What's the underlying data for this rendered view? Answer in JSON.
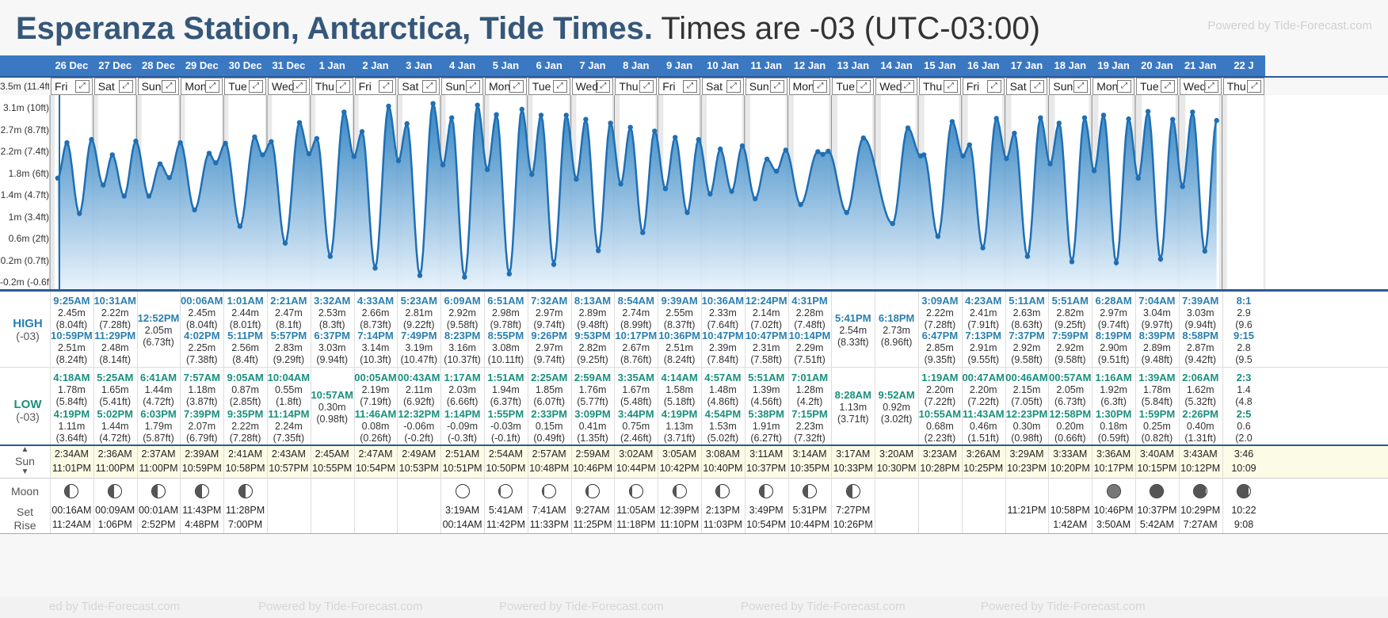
{
  "title": {
    "location": "Esperanza Station, Antarctica, Tide Times.",
    "timezone": "Times are -03 (UTC-03:00)",
    "powered": "Powered by Tide-Forecast.com"
  },
  "labels": {
    "high": "HIGH",
    "high_tz": "(-03)",
    "low": "LOW",
    "low_tz": "(-03)",
    "sun": "Sun",
    "moon": "Moon",
    "set": "Set",
    "rise": "Rise"
  },
  "y_axis": [
    "3.5m (11.4ft)",
    "3.1m (10ft)",
    "2.7m (8.7ft)",
    "2.2m (7.4ft)",
    "1.8m (6ft)",
    "1.4m (4.7ft)",
    "1m (3.4ft)",
    "0.6m (2ft)",
    "0.2m (0.7ft)",
    "-0.2m (-0.6ft)"
  ],
  "footer": [
    "ed by Tide-Forecast.com",
    "Powered by Tide-Forecast.com",
    "Powered by Tide-Forecast.com",
    "Powered by Tide-Forecast.com",
    "Powered by Tide-Forecast.com"
  ],
  "days": [
    {
      "date": "26 Dec",
      "dow": "Fri",
      "high": [
        {
          "t": "9:25AM",
          "m": "2.45m",
          "f": "(8.04ft)"
        },
        {
          "t": "10:59PM",
          "m": "2.51m",
          "f": "(8.24ft)"
        }
      ],
      "low": [
        {
          "t": "4:18AM",
          "m": "1.78m",
          "f": "(5.84ft)"
        },
        {
          "t": "4:19PM",
          "m": "1.11m",
          "f": "(3.64ft)"
        }
      ],
      "sunrise": "2:34AM",
      "sunset": "11:01PM",
      "moon_phase": 0.35,
      "moon_set": "00:16AM",
      "moon_rise": "11:24AM"
    },
    {
      "date": "27 Dec",
      "dow": "Sat",
      "high": [
        {
          "t": "10:31AM",
          "m": "2.22m",
          "f": "(7.28ft)"
        },
        {
          "t": "11:29PM",
          "m": "2.48m",
          "f": "(8.14ft)"
        }
      ],
      "low": [
        {
          "t": "5:25AM",
          "m": "1.65m",
          "f": "(5.41ft)"
        },
        {
          "t": "5:02PM",
          "m": "1.44m",
          "f": "(4.72ft)"
        }
      ],
      "sunrise": "2:36AM",
      "sunset": "11:00PM",
      "moon_phase": 0.4,
      "moon_set": "00:09AM",
      "moon_rise": "1:06PM"
    },
    {
      "date": "28 Dec",
      "dow": "Sun",
      "high": [
        {
          "t": "12:52PM",
          "m": "2.05m",
          "f": "(6.73ft)"
        }
      ],
      "low": [
        {
          "t": "6:41AM",
          "m": "1.44m",
          "f": "(4.72ft)"
        },
        {
          "t": "6:03PM",
          "m": "1.79m",
          "f": "(5.87ft)"
        }
      ],
      "sunrise": "2:37AM",
      "sunset": "11:00PM",
      "moon_phase": 0.45,
      "moon_set": "00:01AM",
      "moon_rise": "2:52PM"
    },
    {
      "date": "29 Dec",
      "dow": "Mon",
      "high": [
        {
          "t": "00:06AM",
          "m": "2.45m",
          "f": "(8.04ft)"
        },
        {
          "t": "4:02PM",
          "m": "2.25m",
          "f": "(7.38ft)"
        }
      ],
      "low": [
        {
          "t": "7:57AM",
          "m": "1.18m",
          "f": "(3.87ft)"
        },
        {
          "t": "7:39PM",
          "m": "2.07m",
          "f": "(6.79ft)"
        }
      ],
      "sunrise": "2:39AM",
      "sunset": "10:59PM",
      "moon_phase": 0.5,
      "moon_set": "11:43PM",
      "moon_rise": "4:48PM"
    },
    {
      "date": "30 Dec",
      "dow": "Tue",
      "high": [
        {
          "t": "1:01AM",
          "m": "2.44m",
          "f": "(8.01ft)"
        },
        {
          "t": "5:11PM",
          "m": "2.56m",
          "f": "(8.4ft)"
        }
      ],
      "low": [
        {
          "t": "9:05AM",
          "m": "0.87m",
          "f": "(2.85ft)"
        },
        {
          "t": "9:35PM",
          "m": "2.22m",
          "f": "(7.28ft)"
        }
      ],
      "sunrise": "2:41AM",
      "sunset": "10:58PM",
      "moon_phase": 0.55,
      "moon_set": "11:28PM",
      "moon_rise": "7:00PM"
    },
    {
      "date": "31 Dec",
      "dow": "Wed",
      "high": [
        {
          "t": "2:21AM",
          "m": "2.47m",
          "f": "(8.1ft)"
        },
        {
          "t": "5:57PM",
          "m": "2.83m",
          "f": "(9.29ft)"
        }
      ],
      "low": [
        {
          "t": "10:04AM",
          "m": "0.55m",
          "f": "(1.8ft)"
        },
        {
          "t": "11:14PM",
          "m": "2.24m",
          "f": "(7.35ft)"
        }
      ],
      "sunrise": "2:43AM",
      "sunset": "10:57PM",
      "moon_phase": -1,
      "moon_set": "",
      "moon_rise": ""
    },
    {
      "date": "1 Jan",
      "dow": "Thu",
      "high": [
        {
          "t": "3:32AM",
          "m": "2.53m",
          "f": "(8.3ft)"
        },
        {
          "t": "6:37PM",
          "m": "3.03m",
          "f": "(9.94ft)"
        }
      ],
      "low": [
        {
          "t": "10:57AM",
          "m": "0.30m",
          "f": "(0.98ft)"
        }
      ],
      "sunrise": "2:45AM",
      "sunset": "10:55PM",
      "moon_phase": -1,
      "moon_set": "",
      "moon_rise": ""
    },
    {
      "date": "2 Jan",
      "dow": "Fri",
      "high": [
        {
          "t": "4:33AM",
          "m": "2.66m",
          "f": "(8.73ft)"
        },
        {
          "t": "7:14PM",
          "m": "3.14m",
          "f": "(10.3ft)"
        }
      ],
      "low": [
        {
          "t": "00:05AM",
          "m": "2.19m",
          "f": "(7.19ft)"
        },
        {
          "t": "11:46AM",
          "m": "0.08m",
          "f": "(0.26ft)"
        }
      ],
      "sunrise": "2:47AM",
      "sunset": "10:54PM",
      "moon_phase": -1,
      "moon_set": "",
      "moon_rise": ""
    },
    {
      "date": "3 Jan",
      "dow": "Sat",
      "high": [
        {
          "t": "5:23AM",
          "m": "2.81m",
          "f": "(9.22ft)"
        },
        {
          "t": "7:49PM",
          "m": "3.19m",
          "f": "(10.47ft)"
        }
      ],
      "low": [
        {
          "t": "00:43AM",
          "m": "2.11m",
          "f": "(6.92ft)"
        },
        {
          "t": "12:32PM",
          "m": "-0.06m",
          "f": "(-0.2ft)"
        }
      ],
      "sunrise": "2:49AM",
      "sunset": "10:53PM",
      "moon_phase": -1,
      "moon_set": "",
      "moon_rise": ""
    },
    {
      "date": "4 Jan",
      "dow": "Sun",
      "high": [
        {
          "t": "6:09AM",
          "m": "2.92m",
          "f": "(9.58ft)"
        },
        {
          "t": "8:23PM",
          "m": "3.16m",
          "f": "(10.37ft)"
        }
      ],
      "low": [
        {
          "t": "1:17AM",
          "m": "2.03m",
          "f": "(6.66ft)"
        },
        {
          "t": "1:14PM",
          "m": "-0.09m",
          "f": "(-0.3ft)"
        }
      ],
      "sunrise": "2:51AM",
      "sunset": "10:51PM",
      "moon_phase": 0.0,
      "moon_set": "3:19AM",
      "moon_rise": "00:14AM"
    },
    {
      "date": "5 Jan",
      "dow": "Mon",
      "high": [
        {
          "t": "6:51AM",
          "m": "2.98m",
          "f": "(9.78ft)"
        },
        {
          "t": "8:55PM",
          "m": "3.08m",
          "f": "(10.11ft)"
        }
      ],
      "low": [
        {
          "t": "1:51AM",
          "m": "1.94m",
          "f": "(6.37ft)"
        },
        {
          "t": "1:55PM",
          "m": "-0.03m",
          "f": "(-0.1ft)"
        }
      ],
      "sunrise": "2:54AM",
      "sunset": "10:50PM",
      "moon_phase": 0.08,
      "moon_set": "5:41AM",
      "moon_rise": "11:42PM"
    },
    {
      "date": "6 Jan",
      "dow": "Tue",
      "high": [
        {
          "t": "7:32AM",
          "m": "2.97m",
          "f": "(9.74ft)"
        },
        {
          "t": "9:26PM",
          "m": "2.97m",
          "f": "(9.74ft)"
        }
      ],
      "low": [
        {
          "t": "2:25AM",
          "m": "1.85m",
          "f": "(6.07ft)"
        },
        {
          "t": "2:33PM",
          "m": "0.15m",
          "f": "(0.49ft)"
        }
      ],
      "sunrise": "2:57AM",
      "sunset": "10:48PM",
      "moon_phase": 0.12,
      "moon_set": "7:41AM",
      "moon_rise": "11:33PM"
    },
    {
      "date": "7 Jan",
      "dow": "Wed",
      "high": [
        {
          "t": "8:13AM",
          "m": "2.89m",
          "f": "(9.48ft)"
        },
        {
          "t": "9:53PM",
          "m": "2.82m",
          "f": "(9.25ft)"
        }
      ],
      "low": [
        {
          "t": "2:59AM",
          "m": "1.76m",
          "f": "(5.77ft)"
        },
        {
          "t": "3:09PM",
          "m": "0.41m",
          "f": "(1.35ft)"
        }
      ],
      "sunrise": "2:59AM",
      "sunset": "10:46PM",
      "moon_phase": 0.16,
      "moon_set": "9:27AM",
      "moon_rise": "11:25PM"
    },
    {
      "date": "8 Jan",
      "dow": "Thu",
      "high": [
        {
          "t": "8:54AM",
          "m": "2.74m",
          "f": "(8.99ft)"
        },
        {
          "t": "10:17PM",
          "m": "2.67m",
          "f": "(8.76ft)"
        }
      ],
      "low": [
        {
          "t": "3:35AM",
          "m": "1.67m",
          "f": "(5.48ft)"
        },
        {
          "t": "3:44PM",
          "m": "0.75m",
          "f": "(2.46ft)"
        }
      ],
      "sunrise": "3:02AM",
      "sunset": "10:44PM",
      "moon_phase": 0.2,
      "moon_set": "11:05AM",
      "moon_rise": "11:18PM"
    },
    {
      "date": "9 Jan",
      "dow": "Fri",
      "high": [
        {
          "t": "9:39AM",
          "m": "2.55m",
          "f": "(8.37ft)"
        },
        {
          "t": "10:36PM",
          "m": "2.51m",
          "f": "(8.24ft)"
        }
      ],
      "low": [
        {
          "t": "4:14AM",
          "m": "1.58m",
          "f": "(5.18ft)"
        },
        {
          "t": "4:19PM",
          "m": "1.13m",
          "f": "(3.71ft)"
        }
      ],
      "sunrise": "3:05AM",
      "sunset": "10:42PM",
      "moon_phase": 0.25,
      "moon_set": "12:39PM",
      "moon_rise": "11:10PM"
    },
    {
      "date": "10 Jan",
      "dow": "Sat",
      "high": [
        {
          "t": "10:36AM",
          "m": "2.33m",
          "f": "(7.64ft)"
        },
        {
          "t": "10:47PM",
          "m": "2.39m",
          "f": "(7.84ft)"
        }
      ],
      "low": [
        {
          "t": "4:57AM",
          "m": "1.48m",
          "f": "(4.86ft)"
        },
        {
          "t": "4:54PM",
          "m": "1.53m",
          "f": "(5.02ft)"
        }
      ],
      "sunrise": "3:08AM",
      "sunset": "10:40PM",
      "moon_phase": 0.3,
      "moon_set": "2:13PM",
      "moon_rise": "11:03PM"
    },
    {
      "date": "11 Jan",
      "dow": "Sun",
      "high": [
        {
          "t": "12:24PM",
          "m": "2.14m",
          "f": "(7.02ft)"
        },
        {
          "t": "10:47PM",
          "m": "2.31m",
          "f": "(7.58ft)"
        }
      ],
      "low": [
        {
          "t": "5:51AM",
          "m": "1.39m",
          "f": "(4.56ft)"
        },
        {
          "t": "5:38PM",
          "m": "1.91m",
          "f": "(6.27ft)"
        }
      ],
      "sunrise": "3:11AM",
      "sunset": "10:37PM",
      "moon_phase": 0.35,
      "moon_set": "3:49PM",
      "moon_rise": "10:54PM"
    },
    {
      "date": "12 Jan",
      "dow": "Mon",
      "high": [
        {
          "t": "4:31PM",
          "m": "2.28m",
          "f": "(7.48ft)"
        },
        {
          "t": "10:14PM",
          "m": "2.29m",
          "f": "(7.51ft)"
        }
      ],
      "low": [
        {
          "t": "7:01AM",
          "m": "1.28m",
          "f": "(4.2ft)"
        },
        {
          "t": "7:15PM",
          "m": "2.23m",
          "f": "(7.32ft)"
        }
      ],
      "sunrise": "3:14AM",
      "sunset": "10:35PM",
      "moon_phase": 0.4,
      "moon_set": "5:31PM",
      "moon_rise": "10:44PM"
    },
    {
      "date": "13 Jan",
      "dow": "Tue",
      "high": [
        {
          "t": "5:41PM",
          "m": "2.54m",
          "f": "(8.33ft)"
        }
      ],
      "low": [
        {
          "t": "8:28AM",
          "m": "1.13m",
          "f": "(3.71ft)"
        }
      ],
      "sunrise": "3:17AM",
      "sunset": "10:33PM",
      "moon_phase": 0.45,
      "moon_set": "7:27PM",
      "moon_rise": "10:26PM"
    },
    {
      "date": "14 Jan",
      "dow": "Wed",
      "high": [
        {
          "t": "6:18PM",
          "m": "2.73m",
          "f": "(8.96ft)"
        }
      ],
      "low": [
        {
          "t": "9:52AM",
          "m": "0.92m",
          "f": "(3.02ft)"
        }
      ],
      "sunrise": "3:20AM",
      "sunset": "10:30PM",
      "moon_phase": -1,
      "moon_set": "",
      "moon_rise": ""
    },
    {
      "date": "15 Jan",
      "dow": "Thu",
      "high": [
        {
          "t": "3:09AM",
          "m": "2.22m",
          "f": "(7.28ft)"
        },
        {
          "t": "6:47PM",
          "m": "2.85m",
          "f": "(9.35ft)"
        }
      ],
      "low": [
        {
          "t": "1:19AM",
          "m": "2.20m",
          "f": "(7.22ft)"
        },
        {
          "t": "10:55AM",
          "m": "0.68m",
          "f": "(2.23ft)"
        }
      ],
      "sunrise": "3:23AM",
      "sunset": "10:28PM",
      "moon_phase": -1,
      "moon_set": "",
      "moon_rise": ""
    },
    {
      "date": "16 Jan",
      "dow": "Fri",
      "high": [
        {
          "t": "4:23AM",
          "m": "2.41m",
          "f": "(7.91ft)"
        },
        {
          "t": "7:13PM",
          "m": "2.91m",
          "f": "(9.55ft)"
        }
      ],
      "low": [
        {
          "t": "00:47AM",
          "m": "2.20m",
          "f": "(7.22ft)"
        },
        {
          "t": "11:43AM",
          "m": "0.46m",
          "f": "(1.51ft)"
        }
      ],
      "sunrise": "3:26AM",
      "sunset": "10:25PM",
      "moon_phase": -1,
      "moon_set": "",
      "moon_rise": ""
    },
    {
      "date": "17 Jan",
      "dow": "Sat",
      "high": [
        {
          "t": "5:11AM",
          "m": "2.63m",
          "f": "(8.63ft)"
        },
        {
          "t": "7:37PM",
          "m": "2.92m",
          "f": "(9.58ft)"
        }
      ],
      "low": [
        {
          "t": "00:46AM",
          "m": "2.15m",
          "f": "(7.05ft)"
        },
        {
          "t": "12:23PM",
          "m": "0.30m",
          "f": "(0.98ft)"
        }
      ],
      "sunrise": "3:29AM",
      "sunset": "10:23PM",
      "moon_phase": -1,
      "moon_set": "11:21PM",
      "moon_rise": ""
    },
    {
      "date": "18 Jan",
      "dow": "Sun",
      "high": [
        {
          "t": "5:51AM",
          "m": "2.82m",
          "f": "(9.25ft)"
        },
        {
          "t": "7:59PM",
          "m": "2.92m",
          "f": "(9.58ft)"
        }
      ],
      "low": [
        {
          "t": "00:57AM",
          "m": "2.05m",
          "f": "(6.73ft)"
        },
        {
          "t": "12:58PM",
          "m": "0.20m",
          "f": "(0.66ft)"
        }
      ],
      "sunrise": "3:33AM",
      "sunset": "10:20PM",
      "moon_phase": -1,
      "moon_set": "10:58PM",
      "moon_rise": "1:42AM"
    },
    {
      "date": "19 Jan",
      "dow": "Mon",
      "high": [
        {
          "t": "6:28AM",
          "m": "2.97m",
          "f": "(9.74ft)"
        },
        {
          "t": "8:19PM",
          "m": "2.90m",
          "f": "(9.51ft)"
        }
      ],
      "low": [
        {
          "t": "1:16AM",
          "m": "1.92m",
          "f": "(6.3ft)"
        },
        {
          "t": "1:30PM",
          "m": "0.18m",
          "f": "(0.59ft)"
        }
      ],
      "sunrise": "3:36AM",
      "sunset": "10:17PM",
      "moon_phase": 1.0,
      "moon_set": "10:46PM",
      "moon_rise": "3:50AM"
    },
    {
      "date": "20 Jan",
      "dow": "Tue",
      "high": [
        {
          "t": "7:04AM",
          "m": "3.04m",
          "f": "(9.97ft)"
        },
        {
          "t": "8:39PM",
          "m": "2.89m",
          "f": "(9.48ft)"
        }
      ],
      "low": [
        {
          "t": "1:39AM",
          "m": "1.78m",
          "f": "(5.84ft)"
        },
        {
          "t": "1:59PM",
          "m": "0.25m",
          "f": "(0.82ft)"
        }
      ],
      "sunrise": "3:40AM",
      "sunset": "10:15PM",
      "moon_phase": 0.95,
      "moon_set": "10:37PM",
      "moon_rise": "5:42AM"
    },
    {
      "date": "21 Jan",
      "dow": "Wed",
      "high": [
        {
          "t": "7:39AM",
          "m": "3.03m",
          "f": "(9.94ft)"
        },
        {
          "t": "8:58PM",
          "m": "2.87m",
          "f": "(9.42ft)"
        }
      ],
      "low": [
        {
          "t": "2:06AM",
          "m": "1.62m",
          "f": "(5.32ft)"
        },
        {
          "t": "2:26PM",
          "m": "0.40m",
          "f": "(1.31ft)"
        }
      ],
      "sunrise": "3:43AM",
      "sunset": "10:12PM",
      "moon_phase": 0.9,
      "moon_set": "10:29PM",
      "moon_rise": "7:27AM"
    },
    {
      "date": "22 J",
      "dow": "Thu",
      "high": [
        {
          "t": "8:1",
          "m": "2.9",
          "f": "(9.6"
        },
        {
          "t": "9:15",
          "m": "2.8",
          "f": "(9.5"
        }
      ],
      "low": [
        {
          "t": "2:3",
          "m": "1.4",
          "f": "(4.8"
        },
        {
          "t": "2:5",
          "m": "0.6",
          "f": "(2.0"
        }
      ],
      "sunrise": "3:46",
      "sunset": "10:09",
      "moon_phase": 0.85,
      "moon_set": "10:22",
      "moon_rise": "9:08"
    }
  ]
}
